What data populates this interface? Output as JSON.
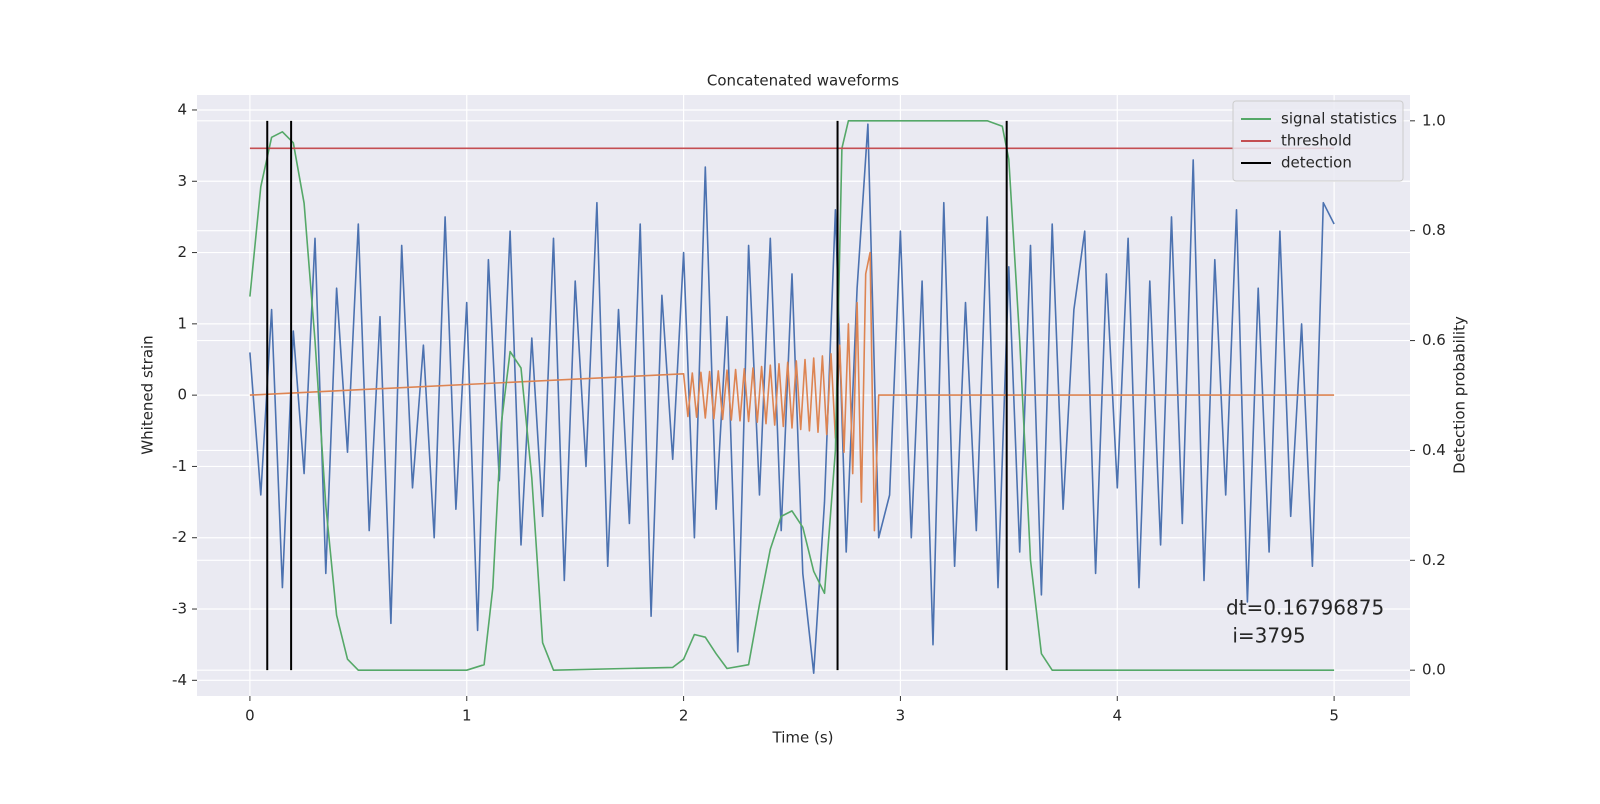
{
  "chart_data": {
    "type": "line",
    "title": "Concatenated waveforms",
    "xlabel": "Time (s)",
    "ylabel": "Whitened strain",
    "y2label": "Detection probability",
    "xlim": [
      -0.244,
      5.35
    ],
    "ylim": [
      -4.22,
      4.21
    ],
    "y2lim": [
      -0.047,
      1.047
    ],
    "xticks": [
      0,
      1,
      2,
      3,
      4,
      5
    ],
    "yticks": [
      -4,
      -3,
      -2,
      -1,
      0,
      1,
      2,
      3,
      4
    ],
    "y2ticks": [
      {
        "value": 0,
        "label": "0.0"
      },
      0.2,
      0.4,
      0.6,
      0.8,
      {
        "value": 1,
        "label": "1.0"
      }
    ],
    "grid": true,
    "legend": "upper right",
    "annotation": [
      "dt=0.16796875",
      " i=3795"
    ],
    "series": [
      {
        "color": "#4c72b0",
        "x": [
          0,
          0.05,
          0.1,
          0.15,
          0.2,
          0.25,
          0.3,
          0.35,
          0.4,
          0.45,
          0.5,
          0.55,
          0.6,
          0.65,
          0.7,
          0.75,
          0.8,
          0.85,
          0.9,
          0.95,
          1,
          1.05,
          1.1,
          1.15,
          1.2,
          1.25,
          1.3,
          1.35,
          1.4,
          1.45,
          1.5,
          1.55,
          1.6,
          1.65,
          1.7,
          1.75,
          1.8,
          1.85,
          1.9,
          1.95,
          2,
          2.05,
          2.1,
          2.15,
          2.2,
          2.25,
          2.3,
          2.35,
          2.4,
          2.45,
          2.5,
          2.55,
          2.6,
          2.65,
          2.7,
          2.75,
          2.8,
          2.85,
          2.9,
          2.95,
          3,
          3.05,
          3.1,
          3.15,
          3.2,
          3.25,
          3.3,
          3.35,
          3.4,
          3.45,
          3.5,
          3.55,
          3.6,
          3.65,
          3.7,
          3.75,
          3.8,
          3.85,
          3.9,
          3.95,
          4,
          4.05,
          4.1,
          4.15,
          4.2,
          4.25,
          4.3,
          4.35,
          4.4,
          4.45,
          4.5,
          4.55,
          4.6,
          4.65,
          4.7,
          4.75,
          4.8,
          4.85,
          4.9,
          4.95,
          5
        ],
        "values": [
          0.6,
          -1.4,
          1.2,
          -2.7,
          0.9,
          -1.1,
          2.2,
          -2.5,
          1.5,
          -0.8,
          2.4,
          -1.9,
          1.1,
          -3.2,
          2.1,
          -1.3,
          0.7,
          -2.0,
          2.5,
          -1.6,
          1.3,
          -3.3,
          1.9,
          -1.2,
          2.3,
          -2.1,
          0.8,
          -1.7,
          2.2,
          -2.6,
          1.6,
          -1.0,
          2.7,
          -2.4,
          1.2,
          -1.8,
          2.4,
          -3.1,
          1.4,
          -0.9,
          2.0,
          -2.0,
          3.2,
          -1.6,
          1.1,
          -3.6,
          2.1,
          -1.4,
          2.2,
          -1.9,
          1.7,
          -2.5,
          -3.9,
          -1.5,
          2.6,
          -2.2,
          1.5,
          3.8,
          -2.0,
          -1.4,
          2.3,
          -2.0,
          1.6,
          -3.5,
          2.7,
          -2.4,
          1.3,
          -1.9,
          2.5,
          -2.7,
          1.8,
          -2.2,
          2.1,
          -2.8,
          2.4,
          -1.6,
          1.2,
          2.3,
          -2.5,
          1.7,
          -1.3,
          2.2,
          -2.7,
          1.6,
          -2.1,
          2.5,
          -1.8,
          3.3,
          -2.6,
          1.9,
          -1.4,
          2.6,
          -2.9,
          1.5,
          -2.2,
          2.3,
          -1.7,
          1.0,
          -2.4,
          2.7,
          2.4
        ]
      },
      {
        "color": "#dd8452",
        "x": [
          0,
          2.0,
          2.02,
          2.04,
          2.06,
          2.08,
          2.1,
          2.12,
          2.14,
          2.16,
          2.18,
          2.2,
          2.22,
          2.24,
          2.26,
          2.28,
          2.3,
          2.32,
          2.34,
          2.36,
          2.38,
          2.4,
          2.42,
          2.44,
          2.46,
          2.48,
          2.5,
          2.52,
          2.54,
          2.56,
          2.58,
          2.6,
          2.62,
          2.64,
          2.66,
          2.68,
          2.7,
          2.72,
          2.74,
          2.76,
          2.78,
          2.8,
          2.82,
          2.84,
          2.86,
          2.88,
          2.9,
          5
        ],
        "values": [
          0,
          0.3,
          -0.3,
          0.31,
          -0.31,
          0.32,
          -0.32,
          0.33,
          -0.33,
          0.34,
          -0.34,
          0.35,
          -0.35,
          0.36,
          -0.36,
          0.37,
          -0.37,
          0.38,
          -0.38,
          0.4,
          -0.4,
          0.42,
          -0.42,
          0.44,
          -0.44,
          0.46,
          -0.46,
          0.48,
          -0.48,
          0.5,
          -0.5,
          0.52,
          -0.52,
          0.55,
          -0.55,
          0.58,
          -0.6,
          0.7,
          -0.8,
          1.0,
          -1.1,
          1.3,
          -1.5,
          1.7,
          2.0,
          -1.9,
          0,
          0
        ]
      },
      {
        "name": "signal statistics",
        "color": "#55a868",
        "axis": "y2",
        "x": [
          0,
          0.05,
          0.1,
          0.15,
          0.2,
          0.25,
          0.3,
          0.35,
          0.4,
          0.45,
          0.5,
          1.0,
          1.08,
          1.12,
          1.16,
          1.2,
          1.25,
          1.3,
          1.35,
          1.4,
          1.95,
          2.0,
          2.05,
          2.1,
          2.15,
          2.2,
          2.3,
          2.35,
          2.4,
          2.45,
          2.5,
          2.55,
          2.6,
          2.65,
          2.7,
          2.73,
          2.76,
          3.4,
          3.47,
          3.5,
          3.55,
          3.6,
          3.65,
          3.7,
          5.0
        ],
        "values": [
          0.68,
          0.88,
          0.97,
          0.98,
          0.96,
          0.85,
          0.6,
          0.3,
          0.1,
          0.02,
          0,
          0,
          0.01,
          0.15,
          0.45,
          0.58,
          0.55,
          0.35,
          0.05,
          0,
          0.005,
          0.02,
          0.065,
          0.06,
          0.03,
          0.003,
          0.01,
          0.12,
          0.22,
          0.28,
          0.29,
          0.26,
          0.18,
          0.14,
          0.4,
          0.95,
          1.0,
          1.0,
          0.99,
          0.93,
          0.6,
          0.2,
          0.03,
          0,
          0
        ]
      },
      {
        "name": "threshold",
        "color": "#c44e52",
        "axis": "y2",
        "x": [
          0,
          5
        ],
        "values": [
          0.95,
          0.95
        ]
      }
    ],
    "detections": {
      "name": "detection",
      "color": "#000000",
      "x": [
        0.08,
        0.19,
        2.71,
        3.49
      ]
    }
  }
}
